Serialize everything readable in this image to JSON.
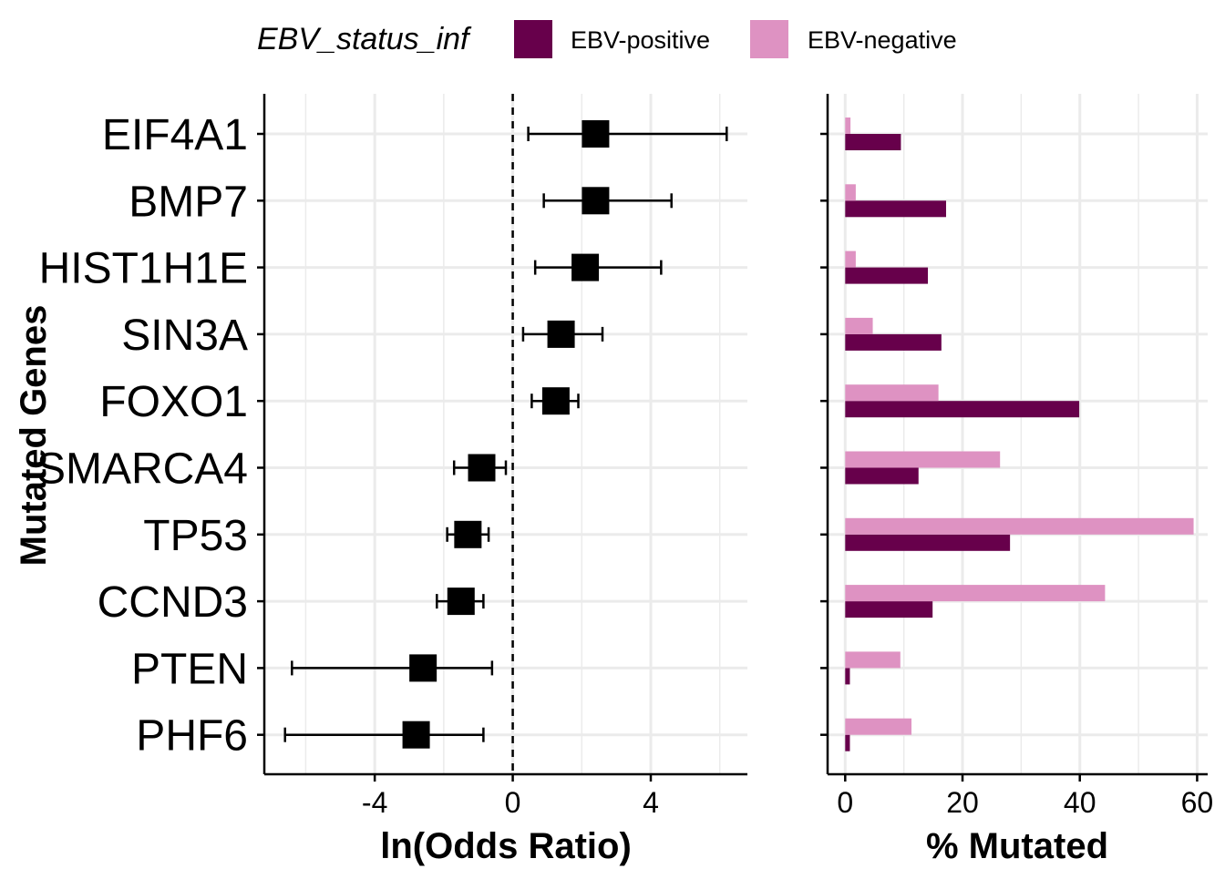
{
  "legend": {
    "title": "EBV_status_inf",
    "entries": [
      {
        "label": "EBV-positive",
        "color": "#67004B"
      },
      {
        "label": "EBV-negative",
        "color": "#DE92C2"
      }
    ],
    "position": "top"
  },
  "y_axis": {
    "label": "Mutated Genes"
  },
  "chart_data": [
    {
      "type": "scatter",
      "panel": "forest",
      "xlabel": "ln(Odds Ratio)",
      "ylabel": "Mutated Genes",
      "xlim": [
        -7.2,
        6.8
      ],
      "xticks": [
        -4,
        0,
        4
      ],
      "xtick_labels": [
        "-4",
        "0",
        "4"
      ],
      "reference_line": 0,
      "grid": true,
      "categories": [
        "EIF4A1",
        "BMP7",
        "HIST1H1E",
        "SIN3A",
        "FOXO1",
        "SMARCA4",
        "TP53",
        "CCND3",
        "PTEN",
        "PHF6"
      ],
      "estimate": [
        2.4,
        2.4,
        2.1,
        1.4,
        1.25,
        -0.9,
        -1.3,
        -1.5,
        -2.6,
        -2.8
      ],
      "ci_low": [
        0.45,
        0.9,
        0.65,
        0.3,
        0.55,
        -1.7,
        -1.9,
        -2.2,
        -6.4,
        -6.6
      ],
      "ci_high": [
        6.2,
        4.6,
        4.3,
        2.6,
        1.9,
        -0.2,
        -0.7,
        -0.85,
        -0.6,
        -0.85
      ]
    },
    {
      "type": "bar",
      "panel": "percent",
      "orientation": "horizontal",
      "xlabel": "% Mutated",
      "xlim": [
        -3,
        61.8
      ],
      "xticks": [
        0,
        20,
        40,
        60
      ],
      "xtick_labels": [
        "0",
        "20",
        "40",
        "60"
      ],
      "grid": true,
      "categories": [
        "EIF4A1",
        "BMP7",
        "HIST1H1E",
        "SIN3A",
        "FOXO1",
        "SMARCA4",
        "TP53",
        "CCND3",
        "PTEN",
        "PHF6"
      ],
      "series": [
        {
          "name": "EBV-positive",
          "color": "#67004B",
          "values": [
            9.5,
            17.2,
            14.1,
            16.4,
            39.9,
            12.5,
            28.1,
            14.9,
            0.8,
            0.8
          ]
        },
        {
          "name": "EBV-negative",
          "color": "#DE92C2",
          "values": [
            0.9,
            1.8,
            1.8,
            4.7,
            15.9,
            26.4,
            59.4,
            44.3,
            9.4,
            11.3
          ]
        }
      ]
    }
  ]
}
